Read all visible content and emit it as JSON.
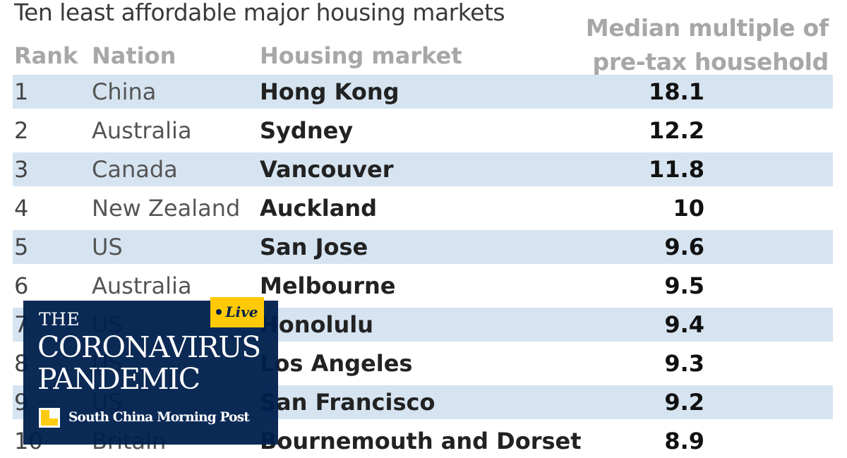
{
  "chart_data": {
    "type": "table",
    "title": "Ten least affordable major housing markets",
    "metric_header_line1": "Median multiple of",
    "metric_header_line2": "pre-tax household income",
    "columns": [
      "Rank",
      "Nation",
      "Housing market"
    ],
    "rows": [
      {
        "rank": "1",
        "nation": "China",
        "market": "Hong Kong",
        "value": "18.1"
      },
      {
        "rank": "2",
        "nation": "Australia",
        "market": "Sydney",
        "value": "12.2"
      },
      {
        "rank": "3",
        "nation": "Canada",
        "market": "Vancouver",
        "value": "11.8"
      },
      {
        "rank": "4",
        "nation": "New Zealand",
        "market": "Auckland",
        "value": "10"
      },
      {
        "rank": "5",
        "nation": "US",
        "market": "San Jose",
        "value": "9.6"
      },
      {
        "rank": "6",
        "nation": "Australia",
        "market": "Melbourne",
        "value": "9.5"
      },
      {
        "rank": "7",
        "nation": "US",
        "market": "Honolulu",
        "value": "9.4"
      },
      {
        "rank": "8",
        "nation": "US",
        "market": "Los Angeles",
        "value": "9.3"
      },
      {
        "rank": "9",
        "nation": "US",
        "market": "San Francisco",
        "value": "9.2"
      },
      {
        "rank": "10",
        "nation": "Britain",
        "market": "Bournemouth and Dorset",
        "value": "8.9"
      }
    ],
    "row_shading_color": "#d6e4f1"
  },
  "overlay": {
    "badge": "Live",
    "kicker": "THE",
    "headline_line1": "CORONAVIRUS",
    "headline_line2": "PANDEMIC",
    "brand": "South China Morning Post",
    "background_color": "#001f4d",
    "badge_color": "#ffca05"
  }
}
